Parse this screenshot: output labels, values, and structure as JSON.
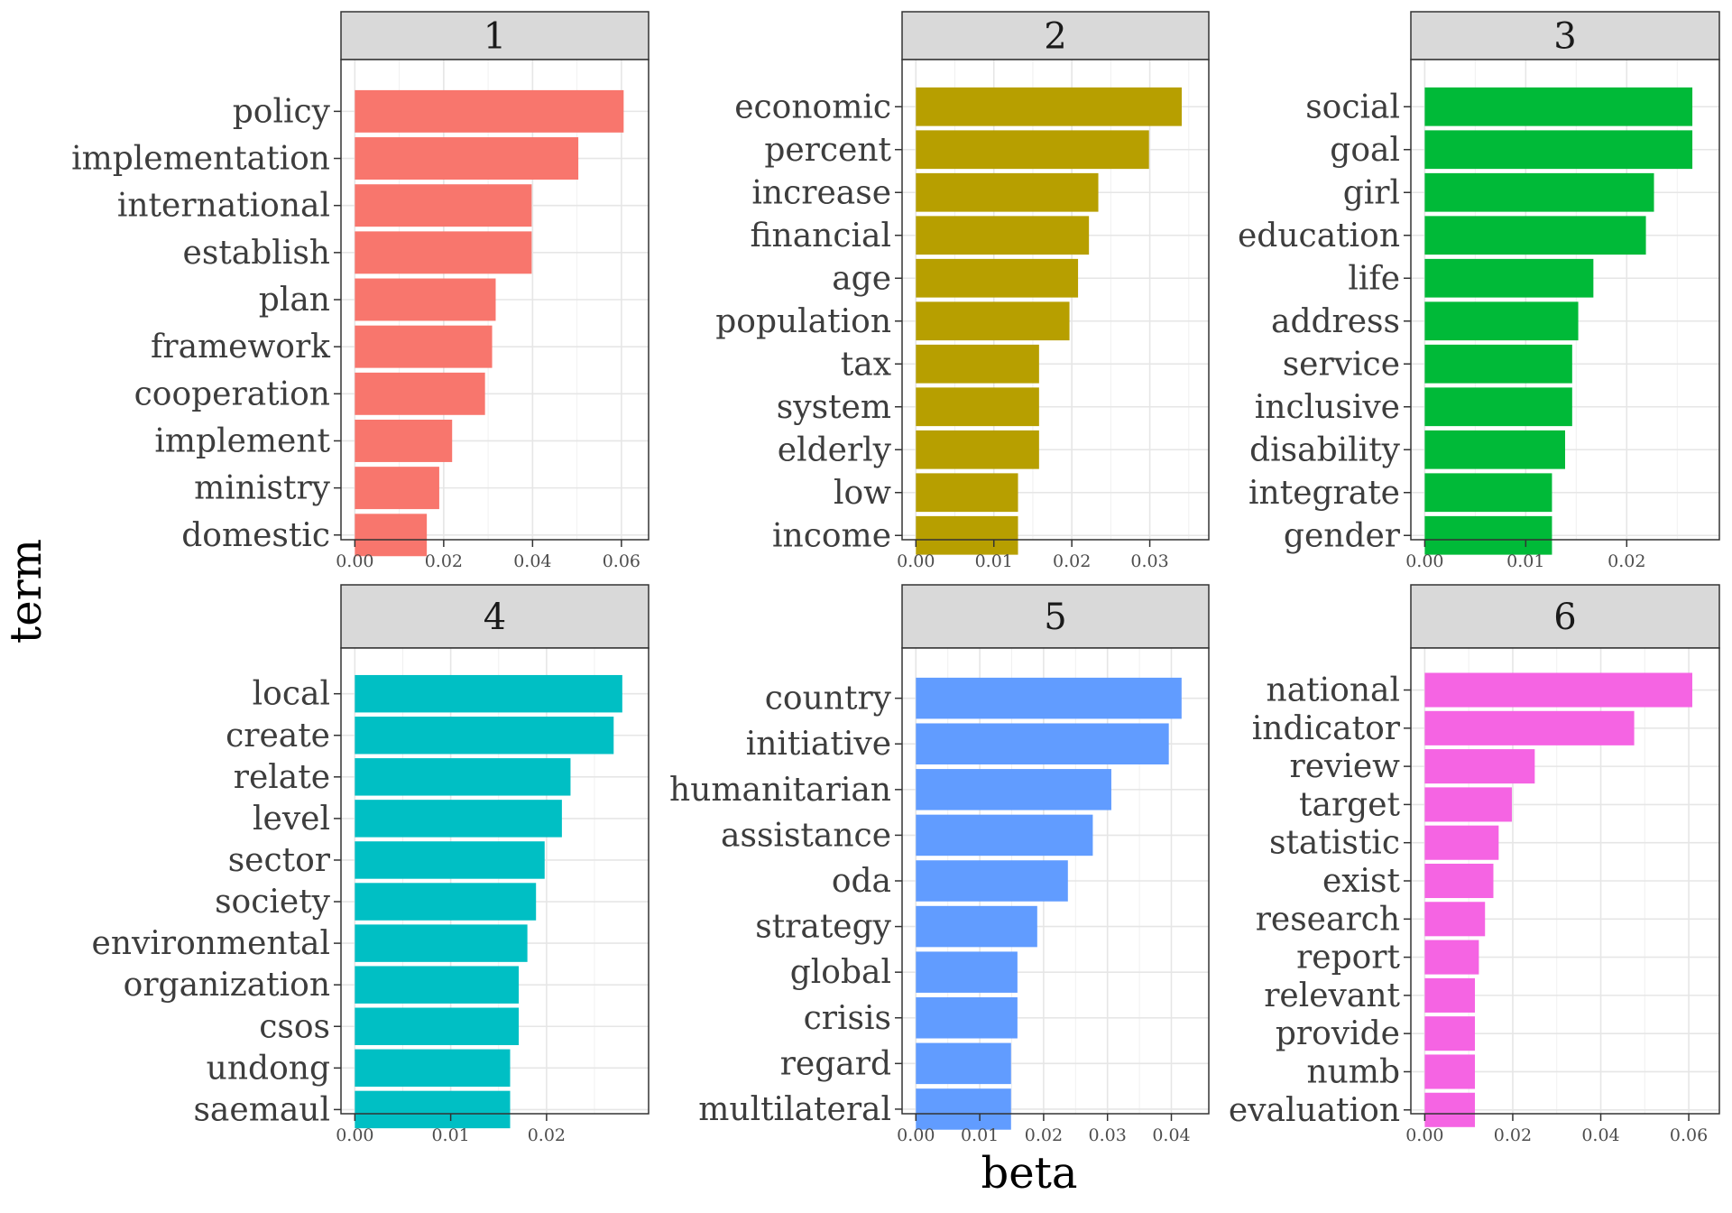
{
  "chart_data": {
    "type": "bar",
    "orientation": "horizontal",
    "layout": "facet-grid 2x3",
    "xlabel": "beta",
    "ylabel": "term",
    "grid": true,
    "legend": "none",
    "panels": [
      {
        "label": "1",
        "color": "#F8766D",
        "xlim": [
          0,
          0.063
        ],
        "ticks": [
          0,
          0.02,
          0.04,
          0.06
        ],
        "tick_labels": [
          "0.00",
          "0.02",
          "0.04",
          "0.06"
        ],
        "categories": [
          "policy",
          "implementation",
          "international",
          "establish",
          "plan",
          "framework",
          "cooperation",
          "implement",
          "ministry",
          "domestic"
        ],
        "values": [
          0.0605,
          0.0503,
          0.0398,
          0.0398,
          0.0317,
          0.0309,
          0.0293,
          0.0219,
          0.019,
          0.0162
        ]
      },
      {
        "label": "2",
        "color": "#B79F00",
        "xlim": [
          0,
          0.0358
        ],
        "ticks": [
          0,
          0.01,
          0.02,
          0.03
        ],
        "tick_labels": [
          "0.00",
          "0.01",
          "0.02",
          "0.03"
        ],
        "categories": [
          "economic",
          "percent",
          "increase",
          "financial",
          "age",
          "population",
          "tax",
          "system",
          "elderly",
          "low",
          "income"
        ],
        "values": [
          0.0341,
          0.0299,
          0.0234,
          0.0222,
          0.0208,
          0.0197,
          0.0158,
          0.0158,
          0.0158,
          0.0131,
          0.0131
        ]
      },
      {
        "label": "3",
        "color": "#00BA38",
        "xlim": [
          0,
          0.0278
        ],
        "ticks": [
          0,
          0.01,
          0.02
        ],
        "tick_labels": [
          "0.00",
          "0.01",
          "0.02"
        ],
        "categories": [
          "social",
          "goal",
          "girl",
          "education",
          "life",
          "address",
          "service",
          "inclusive",
          "disability",
          "integrate",
          "gender"
        ],
        "values": [
          0.0265,
          0.0265,
          0.0227,
          0.0219,
          0.0167,
          0.0152,
          0.0146,
          0.0146,
          0.0139,
          0.0126,
          0.0126
        ]
      },
      {
        "label": "4",
        "color": "#00BFC4",
        "xlim": [
          0,
          0.0292
        ],
        "ticks": [
          0,
          0.01,
          0.02
        ],
        "tick_labels": [
          "0.00",
          "0.01",
          "0.02"
        ],
        "categories": [
          "local",
          "create",
          "relate",
          "level",
          "sector",
          "society",
          "environmental",
          "organization",
          "csos",
          "undong",
          "saemaul"
        ],
        "values": [
          0.0279,
          0.027,
          0.0225,
          0.0216,
          0.0198,
          0.0189,
          0.018,
          0.0171,
          0.0171,
          0.0162,
          0.0162
        ]
      },
      {
        "label": "5",
        "color": "#619CFF",
        "xlim": [
          0,
          0.0437
        ],
        "ticks": [
          0,
          0.01,
          0.02,
          0.03,
          0.04
        ],
        "tick_labels": [
          "0.00",
          "0.01",
          "0.02",
          "0.03",
          "0.04"
        ],
        "categories": [
          "country",
          "initiative",
          "humanitarian",
          "assistance",
          "oda",
          "strategy",
          "global",
          "crisis",
          "regard",
          "multilateral"
        ],
        "values": [
          0.0416,
          0.0396,
          0.0306,
          0.0277,
          0.0238,
          0.019,
          0.0159,
          0.0159,
          0.0149,
          0.0149
        ]
      },
      {
        "label": "6",
        "color": "#F564E3",
        "xlim": [
          0,
          0.0638
        ],
        "ticks": [
          0,
          0.02,
          0.04,
          0.06
        ],
        "tick_labels": [
          "0.00",
          "0.02",
          "0.04",
          "0.06"
        ],
        "categories": [
          "national",
          "indicator",
          "review",
          "target",
          "statistic",
          "exist",
          "research",
          "report",
          "relevant",
          "provide",
          "numb",
          "evaluation"
        ],
        "values": [
          0.0608,
          0.0476,
          0.025,
          0.0198,
          0.0168,
          0.0156,
          0.0137,
          0.0123,
          0.0114,
          0.0114,
          0.0114,
          0.0114
        ]
      }
    ]
  }
}
